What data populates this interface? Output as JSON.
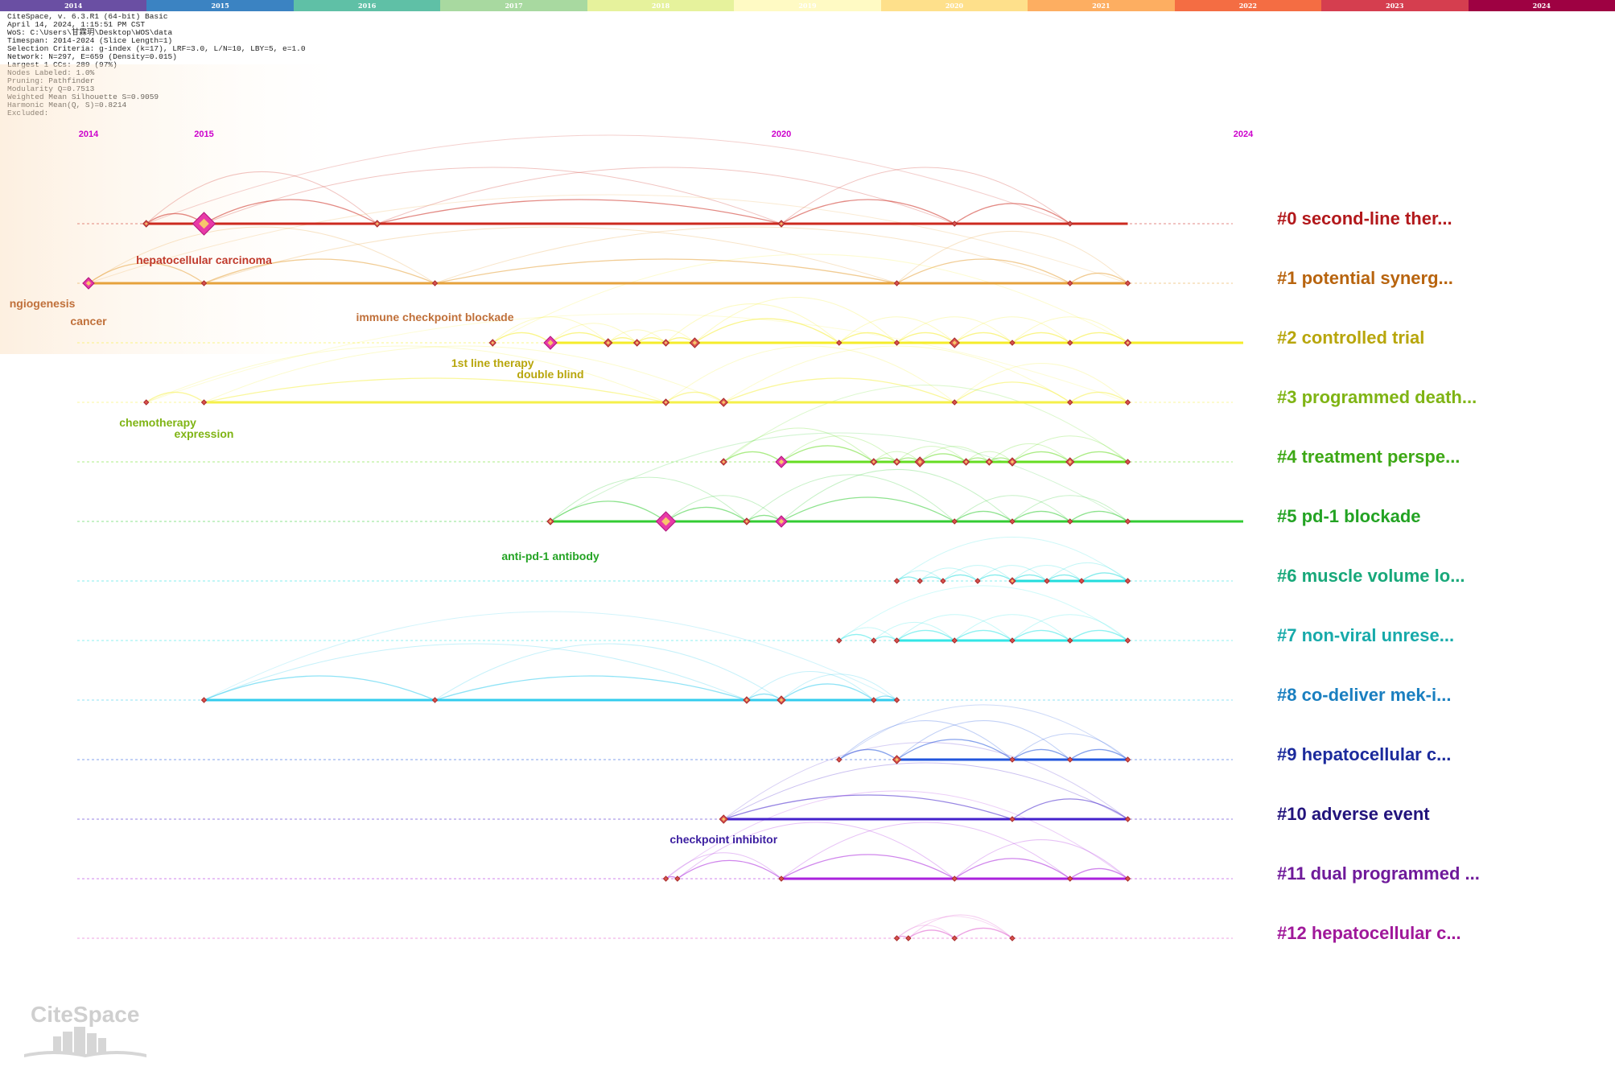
{
  "year_bar": [
    "2014",
    "2015",
    "2016",
    "2017",
    "2018",
    "2019",
    "2020",
    "2021",
    "2022",
    "2023",
    "2024"
  ],
  "year_bar_colors": [
    "#6a4fa3",
    "#3b83c2",
    "#5fc0a6",
    "#a8d9a0",
    "#e6f29c",
    "#fffac4",
    "#fee08b",
    "#fdae61",
    "#f46d43",
    "#d53e4f",
    "#9e0142"
  ],
  "info_lines": [
    "CiteSpace, v. 6.3.R1 (64-bit) Basic",
    "April 14, 2024, 1:15:51 PM CST",
    "WoS: C:\\Users\\甘霖玥\\Desktop\\WOS\\data",
    "Timespan: 2014-2024 (Slice Length=1)",
    "Selection Criteria: g-index (k=17), LRF=3.0, L/N=10, LBY=5, e=1.0",
    "Network: N=297, E=659 (Density=0.015)",
    "Largest 1 CCs: 289 (97%)",
    "Nodes Labeled: 1.0%",
    "Pruning: Pathfinder",
    "Modularity Q=0.7513",
    "Weighted Mean Silhouette S=0.9059",
    "Harmonic Mean(Q, S)=0.8214",
    "Excluded:"
  ],
  "axis_years": [
    {
      "label": "2014",
      "year": 2014
    },
    {
      "label": "2015",
      "year": 2015
    },
    {
      "label": "2020",
      "year": 2020
    },
    {
      "label": "2024",
      "year": 2024
    }
  ],
  "clusters": [
    {
      "id": 0,
      "label": "#0 second-line ther...",
      "color": "#cc2a1f",
      "label_color": "#b2181b",
      "start": 2014.5,
      "end": 2023.0,
      "nodes": [
        [
          2014.5,
          4
        ],
        [
          2015.0,
          14
        ],
        [
          2016.5,
          4
        ],
        [
          2020.0,
          4
        ],
        [
          2021.5,
          3
        ],
        [
          2022.5,
          3
        ]
      ]
    },
    {
      "id": 1,
      "label": "#1 potential synerg...",
      "color": "#e6a23c",
      "label_color": "#b8640e",
      "start": 2014.0,
      "end": 2023.0,
      "nodes": [
        [
          2014.0,
          7
        ],
        [
          2015.0,
          3
        ],
        [
          2017.0,
          3
        ],
        [
          2022.5,
          3
        ],
        [
          2023.0,
          3
        ],
        [
          2021.0,
          3
        ]
      ]
    },
    {
      "id": 2,
      "label": "#2 controlled trial",
      "color": "#f5ec2a",
      "label_color": "#b8a60c",
      "start": 2018.0,
      "end": 2024.0,
      "nodes": [
        [
          2017.5,
          4
        ],
        [
          2018.0,
          8
        ],
        [
          2018.5,
          5
        ],
        [
          2018.75,
          4
        ],
        [
          2019.0,
          4
        ],
        [
          2019.25,
          6
        ],
        [
          2020.5,
          3
        ],
        [
          2021.0,
          3
        ],
        [
          2021.5,
          6
        ],
        [
          2022.0,
          3
        ],
        [
          2022.5,
          3
        ],
        [
          2023.0,
          4
        ]
      ]
    },
    {
      "id": 3,
      "label": "#3 programmed death...",
      "color": "#f5f04a",
      "label_color": "#7fb414",
      "start": 2015.0,
      "end": 2023.0,
      "nodes": [
        [
          2014.5,
          3
        ],
        [
          2015.0,
          3
        ],
        [
          2019.0,
          4
        ],
        [
          2019.5,
          5
        ],
        [
          2021.5,
          3
        ],
        [
          2022.5,
          3
        ],
        [
          2023.0,
          3
        ]
      ]
    },
    {
      "id": 4,
      "label": "#4 treatment perspe...",
      "color": "#66dd22",
      "label_color": "#3da815",
      "start": 2020.0,
      "end": 2023.0,
      "nodes": [
        [
          2019.5,
          4
        ],
        [
          2020.0,
          7
        ],
        [
          2020.8,
          4
        ],
        [
          2021.0,
          4
        ],
        [
          2021.2,
          6
        ],
        [
          2021.6,
          4
        ],
        [
          2021.8,
          4
        ],
        [
          2022.0,
          5
        ],
        [
          2022.5,
          5
        ],
        [
          2023.0,
          3
        ]
      ]
    },
    {
      "id": 5,
      "label": "#5 pd-1 blockade",
      "color": "#33cc33",
      "label_color": "#23a323",
      "start": 2018.0,
      "end": 2024.0,
      "nodes": [
        [
          2018.0,
          4
        ],
        [
          2019.0,
          12
        ],
        [
          2019.7,
          4
        ],
        [
          2020.0,
          7
        ],
        [
          2021.5,
          3
        ],
        [
          2022.0,
          3
        ],
        [
          2022.5,
          3
        ],
        [
          2023.0,
          3
        ]
      ]
    },
    {
      "id": 6,
      "label": "#6 muscle volume lo...",
      "color": "#22dddd",
      "label_color": "#18a87a",
      "start": 2022.0,
      "end": 2023.0,
      "nodes": [
        [
          2021.0,
          3
        ],
        [
          2021.2,
          3
        ],
        [
          2021.4,
          3
        ],
        [
          2021.7,
          3
        ],
        [
          2022.0,
          4
        ],
        [
          2022.3,
          3
        ],
        [
          2022.6,
          3
        ],
        [
          2023.0,
          3
        ]
      ]
    },
    {
      "id": 7,
      "label": "#7 non-viral unrese...",
      "color": "#33e6e6",
      "label_color": "#17aaaa",
      "start": 2021.0,
      "end": 2023.0,
      "nodes": [
        [
          2020.5,
          3
        ],
        [
          2020.8,
          3
        ],
        [
          2021.0,
          3
        ],
        [
          2021.5,
          3
        ],
        [
          2022.0,
          3
        ],
        [
          2022.5,
          3
        ],
        [
          2023.0,
          3
        ]
      ]
    },
    {
      "id": 8,
      "label": "#8 co-deliver mek-i...",
      "color": "#33ccee",
      "label_color": "#1a7fc0",
      "start": 2015.0,
      "end": 2021.0,
      "nodes": [
        [
          2015.0,
          3
        ],
        [
          2017.0,
          3
        ],
        [
          2019.7,
          4
        ],
        [
          2020.0,
          5
        ],
        [
          2020.8,
          3
        ],
        [
          2021.0,
          3
        ]
      ]
    },
    {
      "id": 9,
      "label": "#9 hepatocellular c...",
      "color": "#2255dd",
      "label_color": "#1b2a9c",
      "start": 2021.0,
      "end": 2023.0,
      "nodes": [
        [
          2020.5,
          3
        ],
        [
          2021.0,
          5
        ],
        [
          2022.0,
          3
        ],
        [
          2022.5,
          3
        ],
        [
          2023.0,
          3
        ]
      ]
    },
    {
      "id": 10,
      "label": "#10 adverse event",
      "color": "#4422cc",
      "label_color": "#22137c",
      "start": 2019.5,
      "end": 2023.0,
      "nodes": [
        [
          2019.5,
          5
        ],
        [
          2022.0,
          3
        ],
        [
          2023.0,
          3
        ]
      ]
    },
    {
      "id": 11,
      "label": "#11 dual programmed ...",
      "color": "#aa22dd",
      "label_color": "#6f1a9a",
      "start": 2020.0,
      "end": 2023.0,
      "nodes": [
        [
          2019.0,
          3
        ],
        [
          2019.1,
          3
        ],
        [
          2020.0,
          3
        ],
        [
          2021.5,
          3
        ],
        [
          2022.5,
          3
        ],
        [
          2023.0,
          3
        ]
      ]
    },
    {
      "id": 12,
      "label": "#12 hepatocellular c...",
      "color": "#dd55cc",
      "label_color": "#a0189a",
      "start": 2021.8,
      "end": 2021.8,
      "nodes": [
        [
          2021.0,
          3
        ],
        [
          2021.1,
          3
        ],
        [
          2021.5,
          3
        ],
        [
          2022.0,
          3
        ]
      ]
    }
  ],
  "term_labels": [
    {
      "text": "hepatocellular carcinoma",
      "color": "#c0392b",
      "cluster": 0,
      "year": 2015.0
    },
    {
      "text": "ngiogenesis",
      "color": "#c0703a",
      "cluster": 1,
      "year": 2013.6
    },
    {
      "text": "cancer",
      "color": "#c0703a",
      "cluster": 1,
      "year": 2014.0
    },
    {
      "text": "immune checkpoint blockade",
      "color": "#c0703a",
      "cluster": 2,
      "year": 2017.0
    },
    {
      "text": "1st line therapy",
      "color": "#b8a60c",
      "cluster": 2,
      "year": 2017.5
    },
    {
      "text": "double blind",
      "color": "#b8a60c",
      "cluster": 2,
      "year": 2018.0
    },
    {
      "text": "chemotherapy",
      "color": "#7fb414",
      "cluster": 3,
      "year": 2014.6
    },
    {
      "text": "expression",
      "color": "#7fb414",
      "cluster": 3,
      "year": 2015.0
    },
    {
      "text": "anti-pd-1 antibody",
      "color": "#23a323",
      "cluster": 5,
      "year": 2018.0
    },
    {
      "text": "checkpoint inhibitor",
      "color": "#3b1ea0",
      "cluster": 10,
      "year": 2019.5
    }
  ],
  "logo_text": "CiteSpace"
}
